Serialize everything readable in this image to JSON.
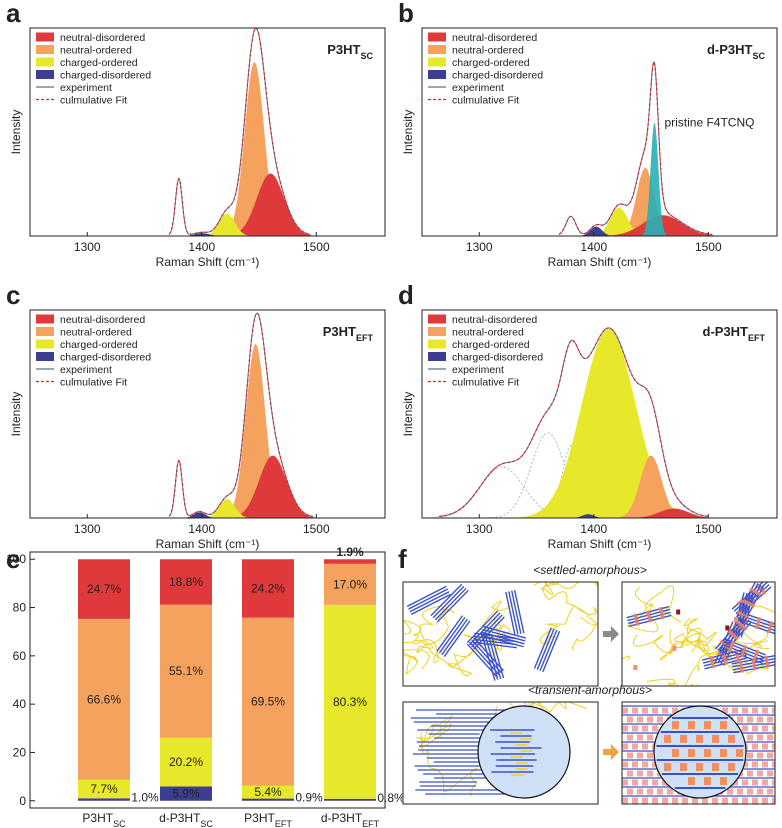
{
  "chart_data": [
    {
      "type": "spectrum",
      "label": "a",
      "title": {
        "main": "P3HT",
        "sub": "SC"
      },
      "xlabel": "Raman Shift (cm⁻¹)",
      "ylabel": "Intensity",
      "xlim": [
        1250,
        1560
      ],
      "xticks": [
        1300,
        1400,
        1500
      ],
      "ylim": [
        0,
        1.1
      ],
      "series": [
        {
          "name": "neutral-disordered",
          "color": "#e0393b",
          "x": 1460,
          "height": 0.33,
          "fwhm": 28
        },
        {
          "name": "neutral-ordered",
          "color": "#f4a25e",
          "x": 1446,
          "height": 0.92,
          "fwhm": 20
        },
        {
          "name": "charged-ordered",
          "color": "#e8e82a",
          "x": 1422,
          "height": 0.12,
          "fwhm": 16
        },
        {
          "name": "charged-disordered",
          "color": "#3c3f8f",
          "x": 1400,
          "height": 0.015,
          "fwhm": 15
        }
      ],
      "extra_peaks": [
        {
          "x": 1380,
          "height": 0.3,
          "fwhm": 7
        }
      ],
      "show_extra": false,
      "lines": [
        {
          "name": "experiment",
          "color": "#5b7590",
          "dash": false
        },
        {
          "name": "culmulative Fit",
          "color": "#d12b2b",
          "dash": true
        }
      ]
    },
    {
      "type": "spectrum",
      "label": "b",
      "title": {
        "main": "d-P3HT",
        "sub": "SC"
      },
      "xlabel": "Raman Shift (cm⁻¹)",
      "ylabel": "Intensity",
      "xlim": [
        1250,
        1560
      ],
      "xticks": [
        1300,
        1400,
        1500
      ],
      "ylim": [
        0,
        1.1
      ],
      "series": [
        {
          "name": "neutral-disordered",
          "color": "#e0393b",
          "x": 1460,
          "height": 0.11,
          "fwhm": 40
        },
        {
          "name": "neutral-ordered",
          "color": "#f4a25e",
          "x": 1445,
          "height": 0.36,
          "fwhm": 18
        },
        {
          "name": "charged-ordered",
          "color": "#e8e82a",
          "x": 1422,
          "height": 0.15,
          "fwhm": 18
        },
        {
          "name": "charged-disordered",
          "color": "#3c3f8f",
          "x": 1402,
          "height": 0.05,
          "fwhm": 12
        }
      ],
      "annotation": {
        "text": "pristine F4TCNQ",
        "color": "#2aafb6",
        "x": 1453,
        "height": 0.6,
        "fwhm": 8
      },
      "extra_peaks": [
        {
          "x": 1380,
          "height": 0.1,
          "fwhm": 10
        }
      ],
      "show_extra": false,
      "lines": [
        {
          "name": "experiment",
          "color": "#5b7590",
          "dash": false
        },
        {
          "name": "culmulative Fit",
          "color": "#d12b2b",
          "dash": true
        }
      ]
    },
    {
      "type": "spectrum",
      "label": "c",
      "title": {
        "main": "P3HT",
        "sub": "EFT"
      },
      "xlabel": "Raman Shift (cm⁻¹)",
      "ylabel": "Intensity",
      "xlim": [
        1250,
        1560
      ],
      "xticks": [
        1300,
        1400,
        1500
      ],
      "ylim": [
        0,
        1.1
      ],
      "series": [
        {
          "name": "neutral-disordered",
          "color": "#e0393b",
          "x": 1462,
          "height": 0.33,
          "fwhm": 28
        },
        {
          "name": "neutral-ordered",
          "color": "#f4a25e",
          "x": 1447,
          "height": 0.92,
          "fwhm": 20
        },
        {
          "name": "charged-ordered",
          "color": "#e8e82a",
          "x": 1422,
          "height": 0.1,
          "fwhm": 16
        },
        {
          "name": "charged-disordered",
          "color": "#3c3f8f",
          "x": 1398,
          "height": 0.03,
          "fwhm": 12
        }
      ],
      "extra_peaks": [
        {
          "x": 1380,
          "height": 0.3,
          "fwhm": 7
        }
      ],
      "show_extra": false,
      "lines": [
        {
          "name": "experiment",
          "color": "#5b7590",
          "dash": false
        },
        {
          "name": "culmulative Fit",
          "color": "#d12b2b",
          "dash": true
        }
      ]
    },
    {
      "type": "spectrum",
      "label": "d",
      "title": {
        "main": "d-P3HT",
        "sub": "EFT"
      },
      "xlabel": "Raman Shift (cm⁻¹)",
      "ylabel": "Intensity",
      "xlim": [
        1250,
        1560
      ],
      "xticks": [
        1300,
        1400,
        1500
      ],
      "ylim": [
        0,
        1.1
      ],
      "series": [
        {
          "name": "neutral-disordered",
          "color": "#e0393b",
          "x": 1470,
          "height": 0.05,
          "fwhm": 30
        },
        {
          "name": "neutral-ordered",
          "color": "#f4a25e",
          "x": 1450,
          "height": 0.33,
          "fwhm": 22
        },
        {
          "name": "charged-ordered",
          "color": "#e8e82a",
          "x": 1413,
          "height": 1.0,
          "fwhm": 55
        },
        {
          "name": "charged-disordered",
          "color": "#3c3f8f",
          "x": 1395,
          "height": 0.02,
          "fwhm": 12
        }
      ],
      "extra_peaks": [
        {
          "x": 1320,
          "height": 0.27,
          "fwhm": 45
        },
        {
          "x": 1360,
          "height": 0.45,
          "fwhm": 35
        },
        {
          "x": 1380,
          "height": 0.38,
          "fwhm": 18
        }
      ],
      "show_extra": true,
      "lines": [
        {
          "name": "experiment",
          "color": "#5b7590",
          "dash": false
        },
        {
          "name": "culmulative Fit",
          "color": "#d12b2b",
          "dash": true
        }
      ]
    },
    {
      "type": "stacked_bar",
      "label": "e",
      "categories": [
        {
          "main": "P3HT",
          "sub": "SC"
        },
        {
          "main": "d-P3HT",
          "sub": "SC"
        },
        {
          "main": "P3HT",
          "sub": "EFT"
        },
        {
          "main": "d-P3HT",
          "sub": "EFT"
        }
      ],
      "ylim": [
        -3,
        103
      ],
      "yticks": [
        0,
        20,
        40,
        60,
        80,
        100
      ],
      "series": [
        {
          "color": "#3c3f8f",
          "values": [
            1.0,
            5.9,
            0.9,
            0.8
          ],
          "value_labels": [
            "1.0%",
            "5.9%",
            "0.9%",
            "0.8%"
          ]
        },
        {
          "color": "#e8e82a",
          "values": [
            7.7,
            20.2,
            5.4,
            80.3
          ],
          "value_labels": [
            "7.7%",
            "20.2%",
            "5.4%",
            "80.3%"
          ]
        },
        {
          "color": "#f4a25e",
          "values": [
            66.6,
            55.1,
            69.5,
            17.0
          ],
          "value_labels": [
            "66.6%",
            "55.1%",
            "69.5%",
            "17.0%"
          ]
        },
        {
          "color": "#e0393b",
          "values": [
            24.7,
            18.8,
            24.2,
            1.9
          ],
          "value_labels": [
            "24.7%",
            "18.8%",
            "24.2%",
            "1.9%"
          ]
        }
      ]
    }
  ],
  "diagram": {
    "label": "f",
    "top_title": "<settled-amorphous>",
    "bottom_title": "<transient-amorphous>"
  }
}
